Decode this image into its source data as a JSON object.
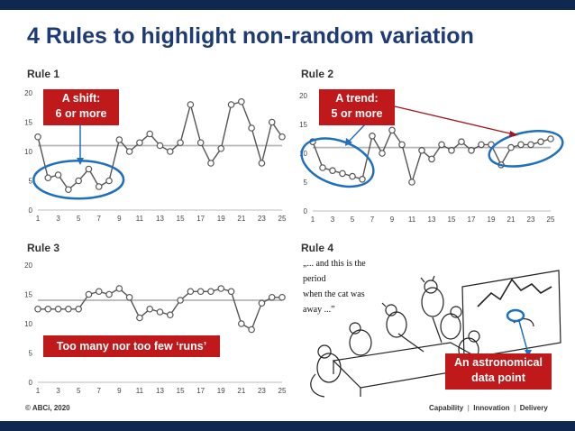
{
  "title": "4 Rules to highlight non-random variation",
  "footer": {
    "copyright": "© ABCi, 2020",
    "capability": "Capability",
    "innovation": "Innovation",
    "delivery": "Delivery"
  },
  "rule4": {
    "label": "Rule 4",
    "cartoon_caption": [
      "„... and this is the",
      "period",
      "when the cat was",
      "away ...”"
    ],
    "callout": [
      "An astronomical",
      "data point"
    ]
  },
  "chart_data": [
    {
      "type": "line",
      "label": "Rule 1",
      "x": [
        1,
        2,
        3,
        4,
        5,
        6,
        7,
        8,
        9,
        10,
        11,
        12,
        13,
        14,
        15,
        16,
        17,
        18,
        19,
        20,
        21,
        22,
        23,
        24,
        25
      ],
      "x_ticks": [
        1,
        3,
        5,
        7,
        9,
        11,
        13,
        15,
        17,
        19,
        21,
        23,
        25
      ],
      "ylim": [
        0,
        20
      ],
      "y_ticks": [
        0,
        5,
        10,
        15,
        20
      ],
      "median": 11,
      "values": [
        12.5,
        5.5,
        6,
        3.5,
        5,
        7,
        4,
        5,
        12,
        10,
        11.5,
        13,
        11,
        10,
        11.5,
        18,
        11.5,
        8,
        10.5,
        18,
        18.5,
        14,
        8,
        15,
        12.5
      ],
      "callout": [
        "A shift:",
        "6 or more"
      ]
    },
    {
      "type": "line",
      "label": "Rule 2",
      "x": [
        1,
        2,
        3,
        4,
        5,
        6,
        7,
        8,
        9,
        10,
        11,
        12,
        13,
        14,
        15,
        16,
        17,
        18,
        19,
        20,
        21,
        22,
        23,
        24,
        25
      ],
      "x_ticks": [
        1,
        3,
        5,
        7,
        9,
        11,
        13,
        15,
        17,
        19,
        21,
        23,
        25
      ],
      "ylim": [
        0,
        20
      ],
      "y_ticks": [
        0,
        5,
        10,
        15,
        20
      ],
      "median": 11,
      "values": [
        12,
        7.5,
        7,
        6.5,
        6,
        5.5,
        13,
        10,
        14,
        11.5,
        5,
        10.5,
        9,
        11.5,
        10.5,
        12,
        10.5,
        11.5,
        11.5,
        8,
        11,
        11.5,
        11.5,
        12,
        12.5
      ],
      "callout": [
        "A trend:",
        "5 or more"
      ]
    },
    {
      "type": "line",
      "label": "Rule 3",
      "x": [
        1,
        2,
        3,
        4,
        5,
        6,
        7,
        8,
        9,
        10,
        11,
        12,
        13,
        14,
        15,
        16,
        17,
        18,
        19,
        20,
        21,
        22,
        23,
        24,
        25
      ],
      "x_ticks": [
        1,
        3,
        5,
        7,
        9,
        11,
        13,
        15,
        17,
        19,
        21,
        23,
        25
      ],
      "ylim": [
        0,
        20
      ],
      "y_ticks": [
        0,
        5,
        10,
        15,
        20
      ],
      "median": 14,
      "values": [
        12.5,
        12.5,
        12.5,
        12.5,
        12.5,
        15,
        15.5,
        15,
        16,
        14.5,
        11,
        12.5,
        12,
        11.5,
        14,
        15.5,
        15.5,
        15.5,
        16,
        15.5,
        10,
        9,
        13.5,
        14.5,
        14.5
      ],
      "callout": [
        "Too many nor too few ‘runs’"
      ]
    }
  ],
  "colors": {
    "brand": "#1f3b73",
    "band": "#0f2850",
    "callout": "#c0191b",
    "highlight": "#1f6fbf",
    "median": "#b5b5b5",
    "line": "#555555"
  }
}
